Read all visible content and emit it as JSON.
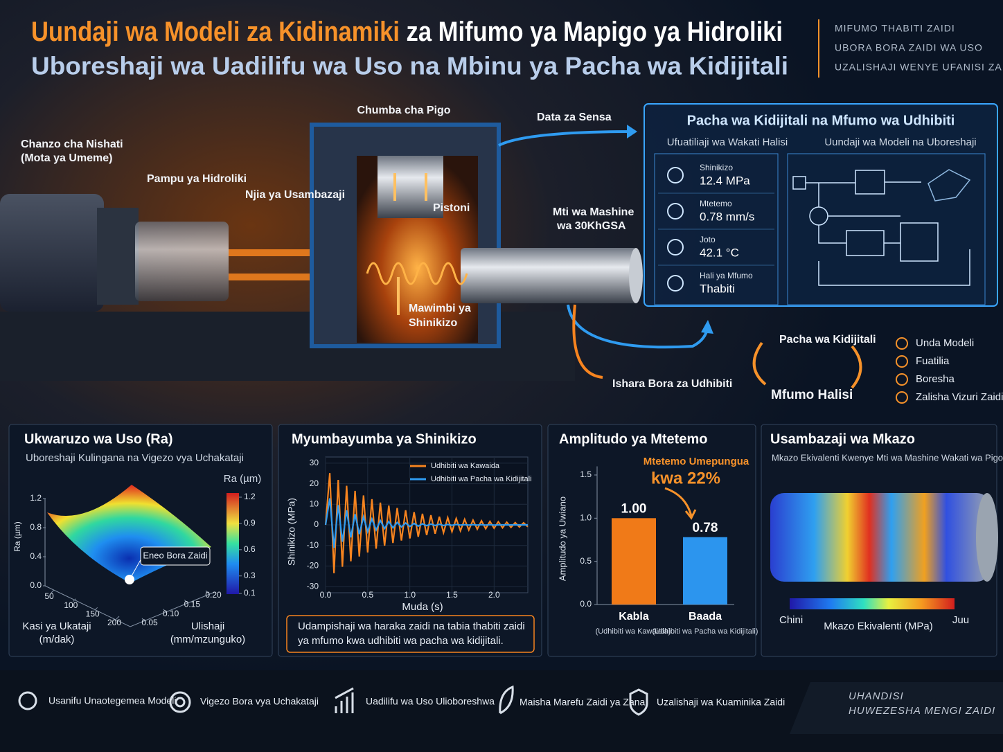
{
  "header": {
    "title_orange": "Uundaji wa Modeli za Kidinamiki",
    "title_white": "za Mifumo ya Mapigo ya Hidroliki",
    "subtitle": "Uboreshaji wa Uadilifu wa Uso na Mbinu ya Pacha wa Kidijitali",
    "benefits": [
      "MIFUMO THABITI ZAIDI",
      "UBORA BORA ZAIDI WA USO",
      "UZALISHAJI WENYE UFANISI ZAIDI"
    ]
  },
  "diagram": {
    "chamber": "Chumba cha Pigo",
    "source": [
      "Chanzo cha Nishati",
      "(Mota ya Umeme)"
    ],
    "pump": "Pampu ya Hidroliki",
    "line": "Njia ya Usambazaji",
    "piston": "Pistoni",
    "shaft": [
      "Mti wa Mashine",
      "wa 30KhGSA"
    ],
    "waves": [
      "Mawimbi ya",
      "Shinikizo"
    ],
    "sensor_data": "Data za Sensa",
    "control_signals": "Ishara Bora za Udhibiti"
  },
  "twin": {
    "title": "Pacha wa Kidijitali na Mfumo wa Udhibiti",
    "monitor_title": "Ufuatiliaji wa Wakati Halisi",
    "model_title": "Uundaji wa Modeli na Uboreshaji",
    "readings": [
      {
        "label": "Shinikizo",
        "value": "12.4 MPa"
      },
      {
        "label": "Mtetemo",
        "value": "0.78 mm/s"
      },
      {
        "label": "Joto",
        "value": "42.1 °C"
      },
      {
        "label": "Hali ya Mfumo",
        "value": "Thabiti"
      }
    ]
  },
  "loop": {
    "twin": "Pacha wa Kidijitali",
    "real": "Mfumo Halisi",
    "checklist": [
      "Unda Modeli",
      "Fuatilia",
      "Boresha",
      "Zalisha Vizuri Zaidi"
    ]
  },
  "chart_data": [
    {
      "type": "surface",
      "title": "Ukwaruzo wa Uso (Ra)",
      "subtitle": "Uboreshaji Kulingana na Vigezo vya Uchakataji",
      "zlabel": "Ra (µm)",
      "colorbar_label": "Ra (µm)",
      "xlabel": [
        "Kasi ya Ukataji",
        "(m/dak)"
      ],
      "ylabel": [
        "Ulishaji",
        "(mm/mzunguko)"
      ],
      "annotation": "Eneo Bora Zaidi",
      "xlim": [
        50,
        200
      ],
      "xticks": [
        50,
        100,
        150,
        200
      ],
      "ylim": [
        0.05,
        0.2
      ],
      "yticks": [
        0.05,
        {
          "value": 0.1,
          "label": "0.10"
        },
        0.15,
        {
          "value": 0.2,
          "label": "0.20"
        }
      ],
      "zlim": [
        0,
        1.2
      ],
      "zticks": [
        {
          "value": 0,
          "label": "0.0"
        },
        0.4,
        0.8,
        1.2
      ],
      "clim": [
        0.1,
        1.2
      ],
      "cticks": [
        0.1,
        0.3,
        0.6,
        0.9,
        1.2
      ]
    },
    {
      "type": "line",
      "title": "Myumbayumba ya Shinikizo",
      "xlabel": "Muda (s)",
      "ylabel": "Shinikizo (MPa)",
      "xlim": [
        0,
        2.4
      ],
      "xticks": [
        {
          "value": 0,
          "label": "0.0"
        },
        0.5,
        {
          "value": 1,
          "label": "1.0"
        },
        1.5,
        {
          "value": 2,
          "label": "2.0"
        }
      ],
      "ylim": [
        -33,
        33
      ],
      "yticks": [
        30,
        20,
        10,
        0,
        -10,
        -20,
        -30
      ],
      "caption": [
        "Udampishaji wa haraka zaidi na tabia thabiti zaidi",
        "ya mfumo kwa udhibiti wa pacha wa kidijitali."
      ],
      "x": [
        0,
        0.05,
        0.1,
        0.15,
        0.2,
        0.25,
        0.3,
        0.35,
        0.4,
        0.45,
        0.5,
        0.55,
        0.6,
        0.65,
        0.7,
        0.75,
        0.8,
        0.85,
        0.9,
        0.95,
        1,
        1.05,
        1.1,
        1.15,
        1.2,
        1.25,
        1.3,
        1.35,
        1.4,
        1.45,
        1.5,
        1.55,
        1.6,
        1.65,
        1.7,
        1.75,
        1.8,
        1.85,
        1.9,
        1.95,
        2,
        2.05,
        2.1,
        2.15,
        2.2,
        2.25,
        2.3,
        2.35,
        2.4
      ],
      "series": [
        {
          "name": "Udhibiti wa Kawaida",
          "color": "#f7841f",
          "values": [
            0,
            25.2,
            -23.5,
            21.9,
            -20.4,
            19,
            -17.7,
            16.5,
            -15.4,
            14.3,
            -13.4,
            12.5,
            -11.6,
            10.8,
            -10.1,
            9.4,
            -8.8,
            8.2,
            -7.6,
            7.1,
            -6.6,
            6.2,
            -5.8,
            5.4,
            -5,
            4.7,
            -4.3,
            4,
            -3.8,
            3.5,
            -3.3,
            3.1,
            -2.9,
            2.7,
            -2.5,
            2.3,
            -2.1,
            2,
            -1.9,
            1.7,
            -1.6,
            1.5,
            -1.4,
            1.3,
            -1.2,
            1.1,
            -1,
            1,
            -0.9
          ]
        },
        {
          "name": "Udhibiti wa Pacha wa Kidijitali",
          "color": "#2f9bf0",
          "values": [
            0,
            12.9,
            -11.1,
            9.6,
            -8.2,
            7.1,
            -6.1,
            5.2,
            -4.5,
            3.9,
            -3.3,
            2.9,
            -2.5,
            2.1,
            -1.8,
            1.6,
            -1.4,
            1.2,
            -1,
            0.9,
            -0.8,
            0.7,
            -0.6,
            0.5,
            -0.4,
            0.4,
            -0.3,
            0.3,
            -0.3,
            0.2,
            -0.2,
            0.2,
            -0.1,
            0.1,
            -0.1,
            0.1,
            -0.1,
            0.1,
            -0.1,
            0.1,
            -0.1,
            0,
            0,
            0,
            0,
            0,
            0,
            0,
            0
          ]
        }
      ]
    },
    {
      "type": "bar",
      "title": "Amplitudo ya Mtetemo",
      "annotation": [
        "Mtetemo Umepungua",
        "kwa 22%"
      ],
      "ylabel": "Amplitudo ya Uwiano",
      "categories": [
        "Kabla",
        "Baada"
      ],
      "category_notes": [
        "(Udhibiti wa Kawaidia)",
        "(Udhibiti wa Pacha wa Kidijitali)"
      ],
      "values": [
        1,
        0.78
      ],
      "value_labels": [
        "1.00",
        "0.78"
      ],
      "colors": [
        "#f07a18",
        "#2c95ee"
      ],
      "ylim": [
        0,
        1.6
      ],
      "yticks": [
        {
          "value": 0,
          "label": "0.0"
        },
        0.5,
        {
          "value": 1,
          "label": "1.0"
        },
        1.5
      ]
    },
    {
      "type": "stressmap",
      "title": "Usambazaji wa Mkazo",
      "subtitle": "Mkazo Ekivalenti Kwenye Mti wa Mashine Wakati wa Pigo",
      "low_label": "Chini",
      "high_label": "Juu",
      "colorbar_label": "Mkazo Ekivalenti (MPa)"
    }
  ],
  "footer": {
    "items": [
      "Usanifu Unaotegemea Modeli",
      "Vigezo Bora vya Uchakataji",
      "Uadilifu wa Uso Ulioboreshwa",
      "Maisha Marefu Zaidi ya Zana",
      "Uzalishaji wa Kuaminika Zaidi"
    ],
    "tagline": [
      "UHANDISI",
      "HUWEZESHA MENGI ZAIDI"
    ]
  }
}
